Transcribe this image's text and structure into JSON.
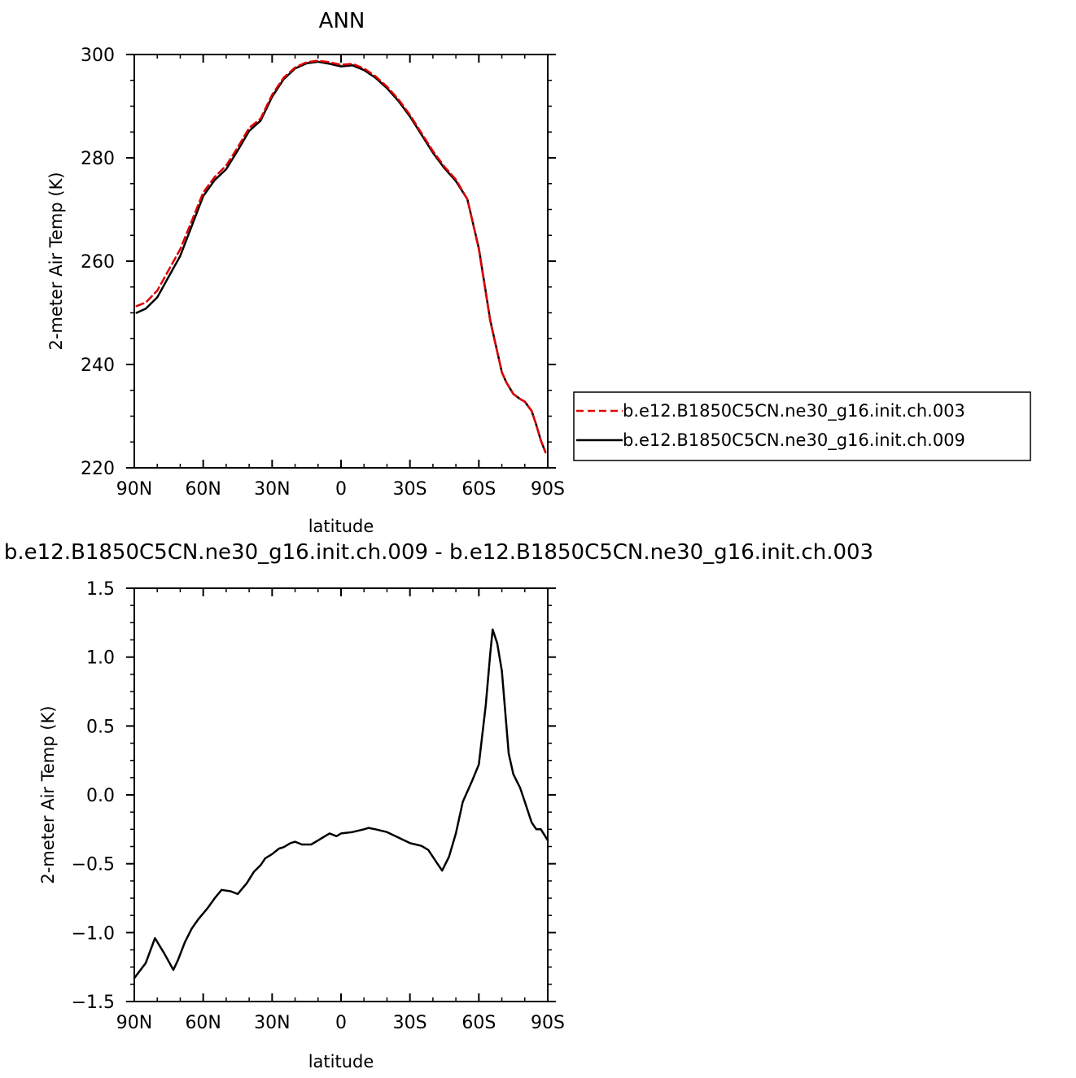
{
  "chart_data": [
    {
      "type": "line",
      "title": "ANN",
      "xlabel": "latitude",
      "ylabel": "2-meter Air Temp (K)",
      "xlim": [
        90,
        -90
      ],
      "ylim": [
        220,
        300
      ],
      "xticks": [
        90,
        60,
        30,
        0,
        -30,
        -60,
        -90
      ],
      "xtick_labels": [
        "90N",
        "60N",
        "30N",
        "0",
        "30S",
        "60S",
        "90S"
      ],
      "yticks": [
        220,
        240,
        260,
        280,
        300
      ],
      "ytick_labels": [
        "220",
        "240",
        "260",
        "280",
        "300"
      ],
      "legend_position": "right",
      "series": [
        {
          "name": "b.e12.B1850C5CN.ne30_g16.init.ch.003",
          "color": "#e00000",
          "dash": "dashed",
          "x": [
            89,
            85,
            80,
            75,
            70,
            65,
            60,
            55,
            50,
            45,
            40,
            35,
            30,
            25,
            20,
            15,
            10,
            5,
            0,
            -5,
            -10,
            -15,
            -20,
            -25,
            -30,
            -35,
            -40,
            -45,
            -50,
            -55,
            -60,
            -65,
            -70,
            -72,
            -75,
            -78,
            -80,
            -83,
            -85,
            -87,
            -89
          ],
          "y": [
            251.3,
            252.0,
            254.3,
            258.3,
            262.3,
            267.8,
            273.3,
            276.3,
            278.5,
            282.0,
            285.8,
            287.6,
            292.2,
            295.5,
            297.5,
            298.5,
            298.8,
            298.5,
            298.0,
            298.2,
            297.3,
            295.8,
            293.8,
            291.3,
            288.3,
            284.8,
            281.3,
            278.3,
            275.8,
            272.0,
            262.3,
            248.3,
            238.5,
            236.5,
            234.3,
            233.3,
            232.8,
            231.0,
            228.3,
            225.3,
            223.0
          ]
        },
        {
          "name": "b.e12.B1850C5CN.ne30_g16.init.ch.009",
          "color": "#000000",
          "dash": "solid",
          "x": [
            89,
            85,
            80,
            75,
            70,
            65,
            60,
            55,
            50,
            45,
            40,
            35,
            30,
            25,
            20,
            15,
            10,
            5,
            0,
            -5,
            -10,
            -15,
            -20,
            -25,
            -30,
            -35,
            -40,
            -45,
            -50,
            -55,
            -60,
            -65,
            -70,
            -72,
            -75,
            -78,
            -80,
            -83,
            -85,
            -87,
            -89
          ],
          "y": [
            250.0,
            250.8,
            253.0,
            257.0,
            261.0,
            266.8,
            272.6,
            275.7,
            277.8,
            281.4,
            285.2,
            287.2,
            291.8,
            295.2,
            297.3,
            298.3,
            298.6,
            298.2,
            297.7,
            297.9,
            297.0,
            295.5,
            293.5,
            291.0,
            288.0,
            284.5,
            281.0,
            278.0,
            275.5,
            272.0,
            262.5,
            248.5,
            238.5,
            236.5,
            234.3,
            233.3,
            232.8,
            231.0,
            228.3,
            225.3,
            223.0
          ]
        }
      ]
    },
    {
      "type": "line",
      "title": "b.e12.B1850C5CN.ne30_g16.init.ch.009 - b.e12.B1850C5CN.ne30_g16.init.ch.003",
      "xlabel": "latitude",
      "ylabel": "2-meter Air Temp (K)",
      "xlim": [
        90,
        -90
      ],
      "ylim": [
        -1.5,
        1.5
      ],
      "xticks": [
        90,
        60,
        30,
        0,
        -30,
        -60,
        -90
      ],
      "xtick_labels": [
        "90N",
        "60N",
        "30N",
        "0",
        "30S",
        "60S",
        "90S"
      ],
      "yticks": [
        -1.5,
        -1.0,
        -0.5,
        0.0,
        0.5,
        1.0,
        1.5
      ],
      "ytick_labels": [
        "−1.5",
        "−1.0",
        "−0.5",
        "0.0",
        "0.5",
        "1.0",
        "1.5"
      ],
      "series": [
        {
          "name": "",
          "color": "#000000",
          "dash": "solid",
          "x": [
            90,
            85,
            81,
            77,
            73,
            71,
            68,
            65,
            62,
            58,
            55,
            52,
            48,
            45,
            41,
            38,
            35,
            33,
            30,
            27,
            25,
            22,
            20,
            17,
            13,
            10,
            8,
            5,
            2,
            0,
            -5,
            -10,
            -12,
            -15,
            -20,
            -25,
            -30,
            -35,
            -38,
            -42,
            -44,
            -47,
            -50,
            -53,
            -57,
            -60,
            -63,
            -65,
            -66,
            -68,
            -70,
            -73,
            -75,
            -78,
            -80,
            -83,
            -85,
            -87,
            -90
          ],
          "y": [
            -1.33,
            -1.22,
            -1.04,
            -1.15,
            -1.27,
            -1.2,
            -1.07,
            -0.97,
            -0.9,
            -0.82,
            -0.75,
            -0.69,
            -0.7,
            -0.72,
            -0.64,
            -0.56,
            -0.51,
            -0.46,
            -0.43,
            -0.39,
            -0.38,
            -0.35,
            -0.34,
            -0.36,
            -0.36,
            -0.33,
            -0.31,
            -0.28,
            -0.3,
            -0.28,
            -0.27,
            -0.25,
            -0.24,
            -0.25,
            -0.27,
            -0.31,
            -0.35,
            -0.37,
            -0.4,
            -0.5,
            -0.55,
            -0.45,
            -0.28,
            -0.05,
            0.1,
            0.22,
            0.65,
            1.03,
            1.2,
            1.1,
            0.9,
            0.3,
            0.15,
            0.05,
            -0.05,
            -0.2,
            -0.25,
            -0.25,
            -0.33
          ]
        }
      ]
    }
  ]
}
